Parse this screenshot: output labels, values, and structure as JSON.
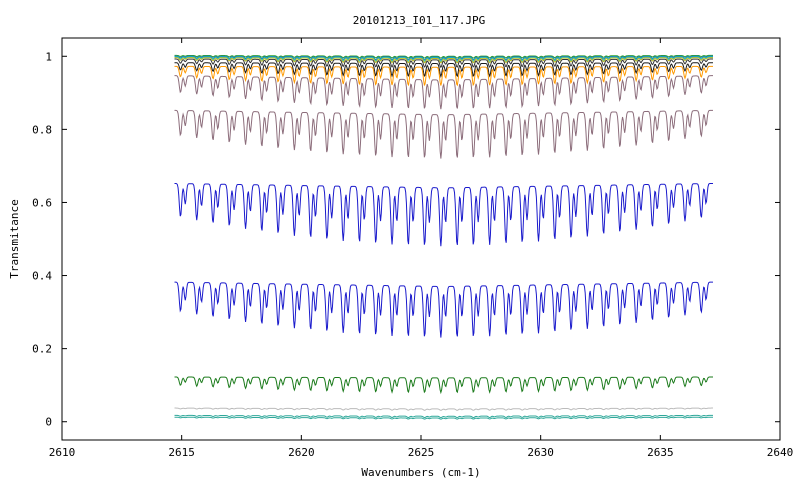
{
  "chart_data": {
    "type": "line",
    "title": "20101213_I01_117.JPG",
    "xlabel": "Wavenumbers (cm-1)",
    "ylabel": "Transmitance",
    "xlim": [
      2610,
      2640
    ],
    "ylim": [
      -0.05,
      1.05
    ],
    "xticks": [
      2610,
      2615,
      2620,
      2625,
      2630,
      2635,
      2640
    ],
    "yticks": [
      0,
      0.2,
      0.4,
      0.6,
      0.8,
      1
    ],
    "ytick_labels": [
      "0",
      "0.2",
      "0.4",
      "0.6",
      "0.8",
      "1"
    ],
    "grid": false,
    "x_range": [
      2614.7,
      2637.2
    ],
    "line_spacing_cm1": 0.68,
    "series": [
      {
        "color": "#2ca02c",
        "baseline": 1.0,
        "depth": 0.005
      },
      {
        "color": "#1f77b4",
        "baseline": 0.998,
        "depth": 0.008
      },
      {
        "color": "#17becf",
        "baseline": 0.996,
        "depth": 0.01
      },
      {
        "color": "#bcbd22",
        "baseline": 0.994,
        "depth": 0.012
      },
      {
        "color": "#333333",
        "baseline": 0.99,
        "depth": 0.02
      },
      {
        "color": "#1a1a1a",
        "baseline": 0.98,
        "depth": 0.035
      },
      {
        "color": "#ff9900",
        "baseline": 0.97,
        "depth": 0.05
      },
      {
        "color": "#8c6d7b",
        "baseline": 0.935,
        "depth": 0.08
      },
      {
        "color": "#8c6d7b",
        "baseline": 0.84,
        "depth": 0.12
      },
      {
        "color": "#1a1acc",
        "baseline": 0.64,
        "depth": 0.16
      },
      {
        "color": "#1a1acc",
        "baseline": 0.37,
        "depth": 0.14
      },
      {
        "color": "#1a7a1a",
        "baseline": 0.12,
        "depth": 0.04
      },
      {
        "color": "#bbbbbb",
        "baseline": 0.035,
        "depth": 0.004
      },
      {
        "color": "#2fa89a",
        "baseline": 0.015,
        "depth": 0.004
      },
      {
        "color": "#2fa89a",
        "baseline": 0.01,
        "depth": 0.003
      }
    ]
  }
}
